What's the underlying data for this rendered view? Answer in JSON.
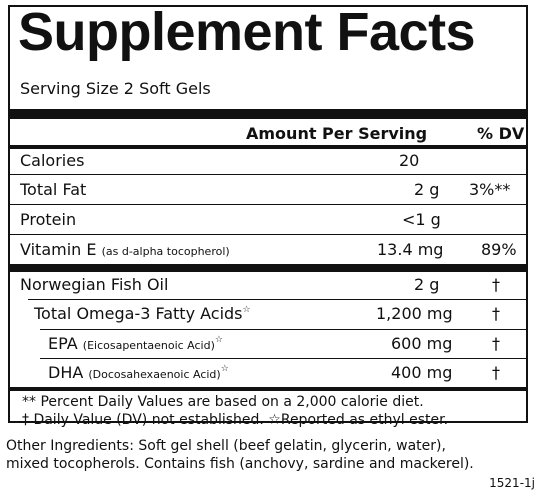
{
  "title": "Supplement Facts",
  "serving_size": "Serving Size 2 Soft Gels",
  "headers": {
    "amount": "Amount Per Serving",
    "dv": "% DV"
  },
  "rows": [
    {
      "name": "Calories",
      "note": "",
      "amount": "20",
      "dv": ""
    },
    {
      "name": "Total Fat",
      "note": "",
      "amount": "2 g",
      "dv": "3%**"
    },
    {
      "name": "Protein",
      "note": "",
      "amount": "<1 g",
      "dv": ""
    },
    {
      "name": "Vitamin E",
      "note": "(as d-alpha tocopherol)",
      "amount": "13.4 mg",
      "dv": "89%"
    },
    {
      "name": "Norwegian Fish Oil",
      "note": "",
      "amount": "2 g",
      "dv": "†"
    },
    {
      "name": "Total Omega-3 Fatty Acids",
      "note": "",
      "star": "☆",
      "amount": "1,200 mg",
      "dv": "†"
    },
    {
      "name": "EPA",
      "note": "(Eicosapentaenoic Acid)",
      "star": "☆",
      "amount": "600 mg",
      "dv": "†"
    },
    {
      "name": "DHA",
      "note": "(Docosahexaenoic Acid)",
      "star": "☆",
      "amount": "400 mg",
      "dv": "†"
    }
  ],
  "footnotes": [
    "** Percent Daily Values are based on a 2,000 calorie diet.",
    "† Daily Value (DV) not established.  ☆Reported as ethyl ester."
  ],
  "ingredients": [
    "Other Ingredients: Soft gel shell (beef gelatin, glycerin, water),",
    "mixed tocopherols. Contains fish (anchovy, sardine and mackerel)."
  ],
  "code": "1521-1j"
}
